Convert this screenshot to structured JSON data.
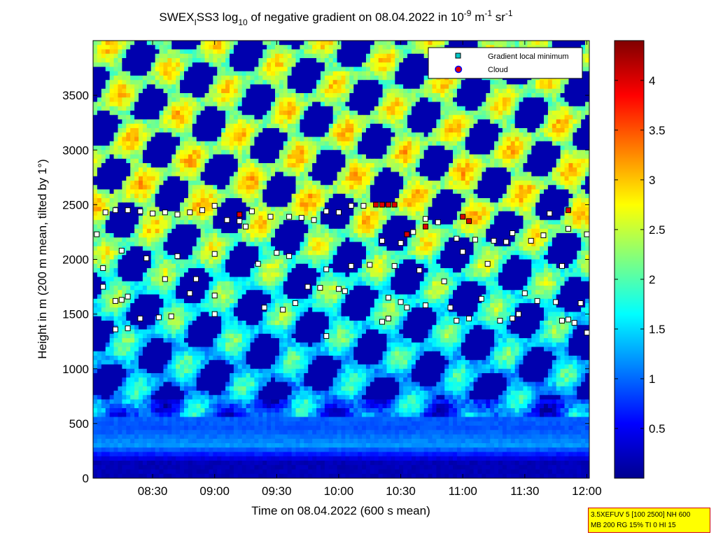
{
  "chart_data": {
    "type": "heatmap",
    "title": {
      "p1": "SWEX",
      "p1_sub": "I",
      "p2": "SS3 log",
      "p2_sub": "10",
      "p3": " of negative gradient on 08.04.2022 in 10",
      "p3_sup": "-9",
      "p4": " m",
      "p4_sup": "-1",
      "p5": " sr",
      "p5_sup": "-1"
    },
    "xlabel": "Time on 08.04.2022 (600 s mean)",
    "ylabel": "Height in m (200 m mean, tilted by 1°)",
    "x_ticks": [
      {
        "t": 8.5,
        "label": "08:30"
      },
      {
        "t": 9.0,
        "label": "09:00"
      },
      {
        "t": 9.5,
        "label": "09:30"
      },
      {
        "t": 10.0,
        "label": "10:00"
      },
      {
        "t": 10.5,
        "label": "10:30"
      },
      {
        "t": 11.0,
        "label": "11:00"
      },
      {
        "t": 11.5,
        "label": "11:30"
      },
      {
        "t": 12.0,
        "label": "12:00"
      }
    ],
    "y_ticks": [
      0,
      500,
      1000,
      1500,
      2000,
      2500,
      3000,
      3500
    ],
    "xlim": [
      8.02,
      12.02
    ],
    "ylim": [
      0,
      4000
    ],
    "colorbar": {
      "ticks": [
        "0.5",
        "1",
        "1.5",
        "2",
        "2.5",
        "3",
        "3.5",
        "4"
      ],
      "tick_values": [
        0.5,
        1,
        1.5,
        2,
        2.5,
        3,
        3.5,
        4
      ],
      "range": [
        0,
        4.4
      ],
      "colormap": "jet"
    },
    "legend": {
      "placement": "top-right",
      "entries": [
        {
          "label": "Gradient local minimum",
          "marker": "square",
          "color": "#00c8c8"
        },
        {
          "label": "Cloud",
          "marker": "circle",
          "color": "#dd0000",
          "edge": "#0000ff"
        }
      ]
    },
    "layers": [
      {
        "height": 150,
        "value": 0.2
      },
      {
        "height": 300,
        "value": 1.2
      },
      {
        "height": 450,
        "value": 0.9
      },
      {
        "height": 1500,
        "value": 1.5
      },
      {
        "height": 2000,
        "value": 1.8
      },
      {
        "height": 2500,
        "value": 2.3
      },
      {
        "height": 3000,
        "value": 2.2
      },
      {
        "height": 3700,
        "value": 2.1
      }
    ],
    "series": [
      {
        "name": "Gradient local minimum",
        "x": [
          8.05,
          8.12,
          8.2,
          8.3,
          8.4,
          8.5,
          8.6,
          8.7,
          8.8,
          8.9,
          9.0,
          9.1,
          9.2,
          9.3,
          9.45,
          9.6,
          9.7,
          9.8,
          9.9,
          10.0,
          10.1,
          10.2,
          10.35,
          10.5,
          10.6,
          10.7,
          10.8,
          10.95,
          11.1,
          11.25,
          11.4,
          11.55,
          11.7,
          11.85,
          12.0,
          8.1,
          8.25,
          8.45,
          8.7,
          8.85,
          9.0,
          9.25,
          9.35,
          9.5,
          9.6,
          9.75,
          9.9,
          10.1,
          10.25,
          10.45,
          10.65,
          10.85,
          11.0,
          11.2,
          11.35,
          11.65,
          11.8,
          8.1,
          8.2,
          8.25,
          8.3,
          8.6,
          8.8,
          9.0,
          9.4,
          9.55,
          9.65,
          9.85,
          10.0,
          10.05,
          10.4,
          10.55,
          10.7,
          10.9,
          11.15,
          11.5,
          11.6,
          11.75,
          11.95,
          8.2,
          8.3,
          8.4,
          8.55,
          8.65,
          9.0,
          9.9,
          10.35,
          10.4,
          10.5,
          10.95,
          11.05,
          11.3,
          11.4,
          11.45,
          11.8,
          11.85,
          11.9,
          12.0
        ],
        "y": [
          2230,
          2430,
          2450,
          2450,
          2440,
          2420,
          2430,
          2410,
          2430,
          2450,
          2490,
          2360,
          2350,
          2440,
          2390,
          2390,
          2380,
          2360,
          2440,
          2430,
          2490,
          2490,
          2170,
          2150,
          2250,
          2370,
          2340,
          2190,
          2180,
          2170,
          2240,
          2170,
          2420,
          2280,
          2230,
          1920,
          2080,
          2010,
          2030,
          1820,
          2050,
          2300,
          1960,
          2060,
          2030,
          1750,
          1910,
          1940,
          1950,
          1940,
          1900,
          1800,
          2070,
          1960,
          2160,
          2220,
          1940,
          1750,
          1620,
          1630,
          1660,
          1820,
          1690,
          1670,
          1560,
          1540,
          1600,
          1740,
          1730,
          1710,
          1650,
          1560,
          1580,
          1560,
          1640,
          1690,
          1620,
          1610,
          1600,
          1360,
          1370,
          1460,
          1470,
          1480,
          1500,
          1300,
          1430,
          1460,
          1610,
          1440,
          1460,
          1440,
          1460,
          1500,
          1440,
          1450,
          1420,
          1330
        ]
      },
      {
        "name": "Cloud",
        "x": [
          9.2,
          10.3,
          10.35,
          10.4,
          10.45,
          10.55,
          10.7,
          11.0,
          11.05,
          11.85
        ],
        "y": [
          2410,
          2500,
          2500,
          2500,
          2500,
          2230,
          2300,
          2390,
          2350,
          2450
        ]
      }
    ]
  },
  "info_box": {
    "line1": "3.5XEFUV 5 [100 2500] NH 600",
    "line2": "MB 200 RG 15% TI 0 HI 15"
  }
}
